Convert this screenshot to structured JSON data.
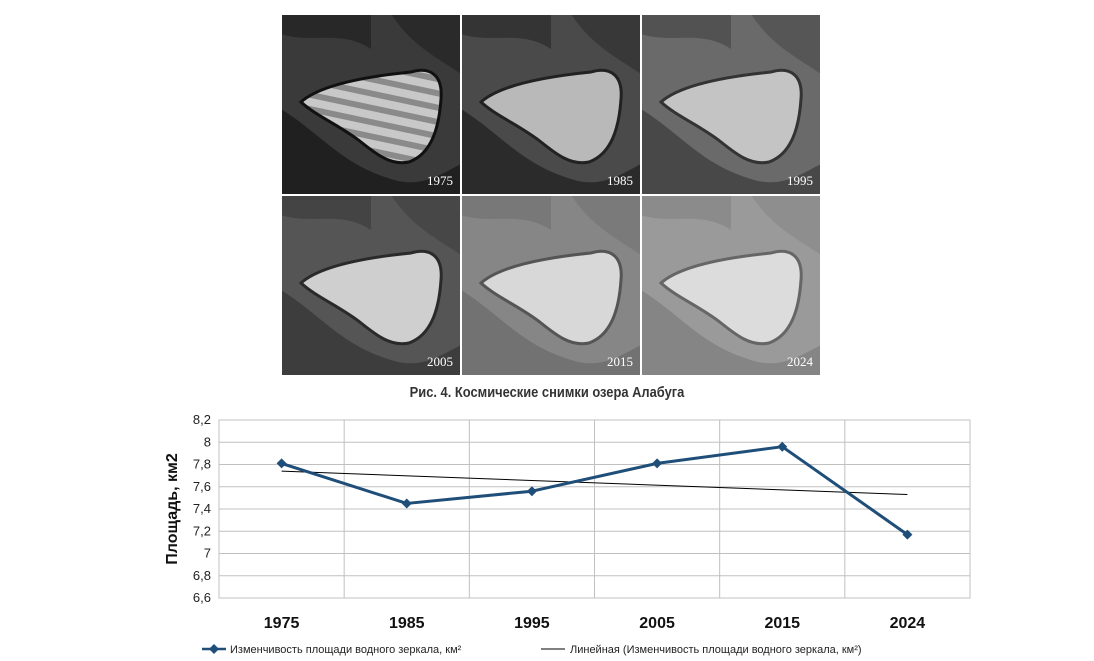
{
  "figure": {
    "caption": "Рис. 4. Космические снимки озера Алабуга",
    "panels": [
      {
        "year": "1975"
      },
      {
        "year": "1985"
      },
      {
        "year": "1995"
      },
      {
        "year": "2005"
      },
      {
        "year": "2015"
      },
      {
        "year": "2024"
      }
    ]
  },
  "chart_data": {
    "type": "line",
    "categories": [
      "1975",
      "1985",
      "1995",
      "2005",
      "2015",
      "2024"
    ],
    "series": [
      {
        "name": "Изменчивость  площади водного зеркала, км²",
        "values": [
          7.81,
          7.45,
          7.56,
          7.81,
          7.96,
          7.17
        ],
        "color": "#1f4e79",
        "marker": "diamond"
      },
      {
        "name": "Линейная (Изменчивость  площади водного зеркала, км²)",
        "values": [
          7.74,
          7.698,
          7.656,
          7.614,
          7.572,
          7.53
        ],
        "color": "#000000",
        "marker": "none"
      }
    ],
    "ylabel": "Площадь, км2",
    "xlabel": "",
    "ylim": [
      6.6,
      8.2
    ],
    "yticks": [
      "6,6",
      "6,8",
      "7",
      "7,2",
      "7,4",
      "7,6",
      "7,8",
      "8",
      "8,2"
    ],
    "grid": true,
    "legend_position": "bottom"
  }
}
